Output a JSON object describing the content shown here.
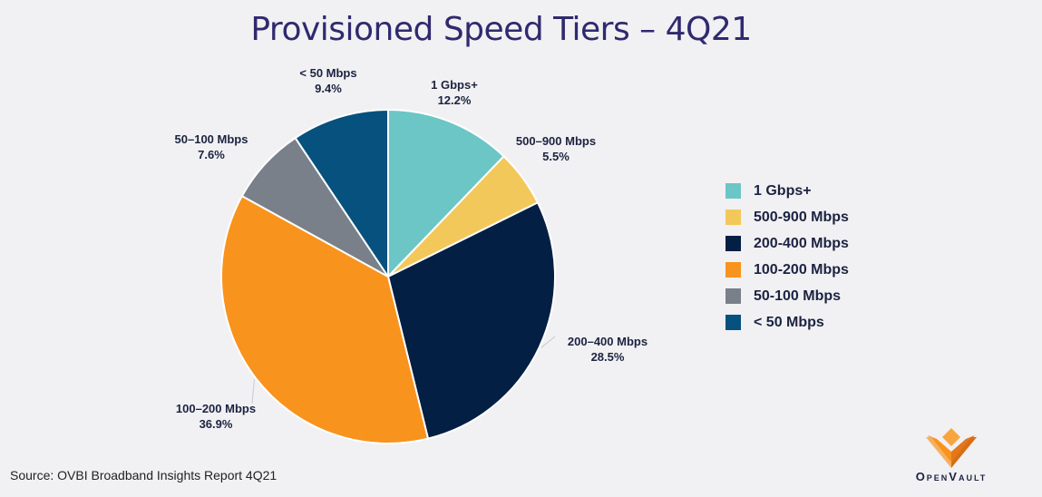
{
  "title": "Provisioned Speed Tiers – 4Q21",
  "source": "Source: OVBI Broadband Insights Report 4Q21",
  "logo": {
    "text": "OpenVault"
  },
  "chart_data": {
    "type": "pie",
    "title": "Provisioned Speed Tiers – 4Q21",
    "legend_position": "right",
    "slices": [
      {
        "label": "1 Gbps+",
        "legend": "1 Gbps+",
        "value": 12.2,
        "value_label": "12.2%",
        "color": "#6cc6c6"
      },
      {
        "label": "500–900 Mbps",
        "legend": "500-900 Mbps",
        "value": 5.5,
        "value_label": "5.5%",
        "color": "#f3c85a"
      },
      {
        "label": "200–400 Mbps",
        "legend": "200-400 Mbps",
        "value": 28.5,
        "value_label": "28.5%",
        "color": "#031f44"
      },
      {
        "label": "100–200 Mbps",
        "legend": "100-200 Mbps",
        "value": 36.9,
        "value_label": "36.9%",
        "color": "#f8931d"
      },
      {
        "label": "50–100 Mbps",
        "legend": "50-100 Mbps",
        "value": 7.6,
        "value_label": "7.6%",
        "color": "#7a808a"
      },
      {
        "label": "< 50 Mbps",
        "legend": "< 50 Mbps",
        "value": 9.4,
        "value_label": "9.4%",
        "color": "#06517e"
      }
    ]
  }
}
